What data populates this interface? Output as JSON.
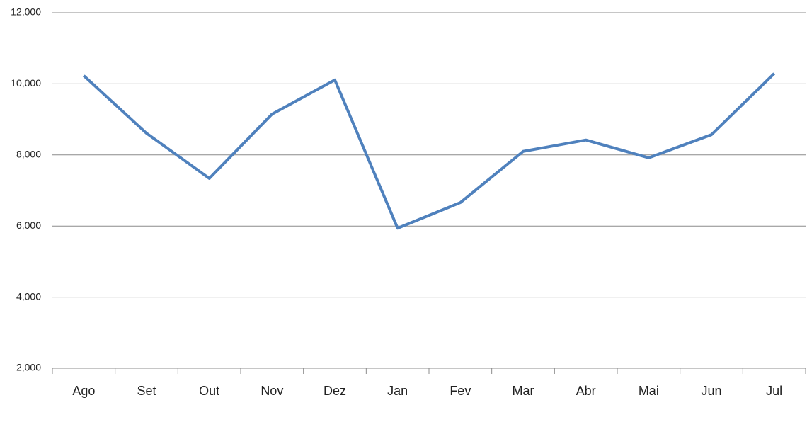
{
  "chart_data": {
    "type": "line",
    "categories": [
      "Ago",
      "Set",
      "Out",
      "Nov",
      "Dez",
      "Jan",
      "Fev",
      "Mar",
      "Abr",
      "Mai",
      "Jun",
      "Jul"
    ],
    "values": [
      10230,
      8610,
      7340,
      9150,
      10110,
      5940,
      6660,
      8100,
      8420,
      7920,
      8570,
      10290
    ],
    "color": "#4f81bd",
    "ylim": [
      2000,
      12000
    ],
    "yticks": [
      {
        "value": 2000,
        "label": "2,000"
      },
      {
        "value": 4000,
        "label": "4,000"
      },
      {
        "value": 6000,
        "label": "6,000"
      },
      {
        "value": 8000,
        "label": "8,000"
      },
      {
        "value": 10000,
        "label": "10,000"
      },
      {
        "value": 12000,
        "label": "12,000"
      }
    ],
    "grid": true
  }
}
